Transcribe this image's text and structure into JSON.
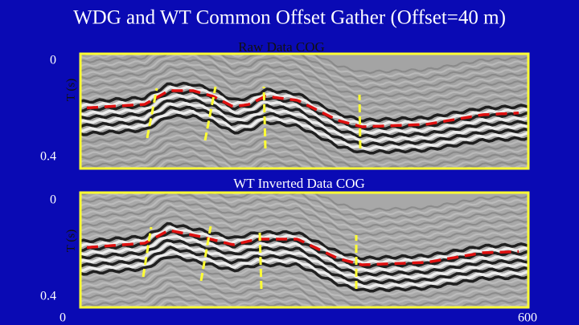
{
  "title": "WDG and WT Common Offset Gather (Offset=40 m)",
  "panels": [
    {
      "title": "Raw Data COG",
      "y_label": "T (s)",
      "y_top": "0",
      "y_bottom": "0.4"
    },
    {
      "title": "WT Inverted Data COG",
      "y_label": "T (s)",
      "y_top": "0",
      "y_bottom": "0.4"
    }
  ],
  "x_axis": {
    "left": "0",
    "right": "600"
  }
}
